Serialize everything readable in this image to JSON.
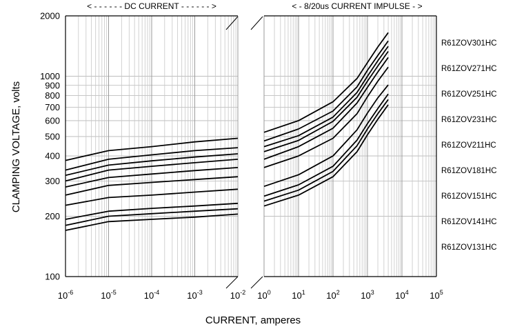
{
  "chart_data": {
    "type": "line",
    "title": "",
    "xlabel": "CURRENT, amperes",
    "ylabel": "CLAMPING VOLTAGE, volts",
    "y_scale": "log",
    "ylim": [
      100,
      2000
    ],
    "y_ticks": [
      100,
      200,
      300,
      400,
      500,
      600,
      700,
      800,
      900,
      1000,
      2000
    ],
    "x_scale": "log",
    "grid": true,
    "panels": [
      {
        "name": "DC",
        "header": "< - - - - - - DC CURRENT - - - - - - >",
        "xlim": [
          1e-06,
          0.01
        ],
        "x_ticks": [
          {
            "base": "10",
            "exp": "-6"
          },
          {
            "base": "10",
            "exp": "-5"
          },
          {
            "base": "10",
            "exp": "-4"
          },
          {
            "base": "10",
            "exp": "-3"
          },
          {
            "base": "10",
            "exp": "-2"
          }
        ]
      },
      {
        "name": "Impulse",
        "header": "< - 8/20us CURRENT IMPULSE - >",
        "xlim": [
          1,
          100000
        ],
        "x_ticks": [
          {
            "base": "10",
            "exp": "0"
          },
          {
            "base": "10",
            "exp": "1"
          },
          {
            "base": "10",
            "exp": "2"
          },
          {
            "base": "10",
            "exp": "3"
          },
          {
            "base": "10",
            "exp": "4"
          },
          {
            "base": "10",
            "exp": "5"
          }
        ]
      }
    ],
    "series": [
      {
        "name": "R61ZOV301HC",
        "dc": [
          [
            1e-06,
            380
          ],
          [
            1e-05,
            425
          ],
          [
            0.0001,
            445
          ],
          [
            0.001,
            470
          ],
          [
            0.01,
            490
          ]
        ],
        "imp": [
          [
            1,
            525
          ],
          [
            10,
            600
          ],
          [
            100,
            745
          ],
          [
            500,
            975
          ],
          [
            1000,
            1170
          ],
          [
            2000,
            1400
          ],
          [
            4000,
            1650
          ]
        ]
      },
      {
        "name": "R61ZOV271HC",
        "dc": [
          [
            1e-06,
            340
          ],
          [
            1e-05,
            385
          ],
          [
            0.0001,
            405
          ],
          [
            0.001,
            425
          ],
          [
            0.01,
            440
          ]
        ],
        "imp": [
          [
            1,
            475
          ],
          [
            10,
            545
          ],
          [
            100,
            670
          ],
          [
            500,
            885
          ],
          [
            1000,
            1070
          ],
          [
            2000,
            1270
          ],
          [
            4000,
            1500
          ]
        ]
      },
      {
        "name": "R61ZOV251HC",
        "dc": [
          [
            1e-06,
            320
          ],
          [
            1e-05,
            360
          ],
          [
            0.0001,
            378
          ],
          [
            0.001,
            395
          ],
          [
            0.01,
            410
          ]
        ],
        "imp": [
          [
            1,
            445
          ],
          [
            10,
            505
          ],
          [
            100,
            625
          ],
          [
            500,
            830
          ],
          [
            1000,
            1000
          ],
          [
            2000,
            1195
          ],
          [
            4000,
            1410
          ]
        ]
      },
      {
        "name": "R61ZOV231HC",
        "dc": [
          [
            1e-06,
            300
          ],
          [
            1e-05,
            340
          ],
          [
            0.0001,
            355
          ],
          [
            0.001,
            370
          ],
          [
            0.01,
            385
          ]
        ],
        "imp": [
          [
            1,
            420
          ],
          [
            10,
            478
          ],
          [
            100,
            595
          ],
          [
            500,
            785
          ],
          [
            1000,
            945
          ],
          [
            2000,
            1125
          ],
          [
            4000,
            1330
          ]
        ]
      },
      {
        "name": "R61ZOV211HC",
        "dc": [
          [
            1e-06,
            280
          ],
          [
            1e-05,
            312
          ],
          [
            0.0001,
            325
          ],
          [
            0.001,
            338
          ],
          [
            0.01,
            350
          ]
        ],
        "imp": [
          [
            1,
            385
          ],
          [
            10,
            445
          ],
          [
            100,
            550
          ],
          [
            500,
            735
          ],
          [
            1000,
            880
          ],
          [
            2000,
            1050
          ],
          [
            4000,
            1240
          ]
        ]
      },
      {
        "name": "R61ZOV181HC",
        "dc": [
          [
            1e-06,
            255
          ],
          [
            1e-05,
            285
          ],
          [
            0.0001,
            295
          ],
          [
            0.001,
            305
          ],
          [
            0.01,
            315
          ]
        ],
        "imp": [
          [
            1,
            350
          ],
          [
            10,
            400
          ],
          [
            100,
            490
          ],
          [
            500,
            650
          ],
          [
            1000,
            790
          ],
          [
            2000,
            945
          ],
          [
            4000,
            1110
          ]
        ]
      },
      {
        "name": "R61ZOV151HC",
        "dc": [
          [
            1e-06,
            227
          ],
          [
            1e-05,
            248
          ],
          [
            0.0001,
            255
          ],
          [
            0.001,
            264
          ],
          [
            0.01,
            273
          ]
        ],
        "imp": [
          [
            1,
            282
          ],
          [
            10,
            322
          ],
          [
            100,
            400
          ],
          [
            500,
            540
          ],
          [
            1000,
            655
          ],
          [
            2000,
            780
          ],
          [
            4000,
            905
          ]
        ]
      },
      {
        "name": "R61ZOV141HC",
        "dc": [
          [
            1e-06,
            193
          ],
          [
            1e-05,
            212
          ],
          [
            0.0001,
            219
          ],
          [
            0.001,
            225
          ],
          [
            0.01,
            232
          ]
        ],
        "imp": [
          [
            1,
            252
          ],
          [
            10,
            287
          ],
          [
            100,
            355
          ],
          [
            500,
            480
          ],
          [
            1000,
            580
          ],
          [
            2000,
            690
          ],
          [
            4000,
            815
          ]
        ]
      },
      {
        "name": "R61ZOV131HC",
        "dc": [
          [
            1e-06,
            180
          ],
          [
            1e-05,
            200
          ],
          [
            0.0001,
            206
          ],
          [
            0.001,
            212
          ],
          [
            0.01,
            218
          ]
        ],
        "imp": [
          [
            1,
            238
          ],
          [
            10,
            270
          ],
          [
            100,
            335
          ],
          [
            500,
            450
          ],
          [
            1000,
            545
          ],
          [
            2000,
            650
          ],
          [
            4000,
            765
          ]
        ]
      },
      {
        "name": "",
        "dc": [
          [
            1e-06,
            170
          ],
          [
            1e-05,
            188
          ],
          [
            0.0001,
            193
          ],
          [
            0.001,
            198
          ],
          [
            0.01,
            205
          ]
        ],
        "imp": [
          [
            1,
            225
          ],
          [
            10,
            255
          ],
          [
            100,
            315
          ],
          [
            500,
            420
          ],
          [
            1000,
            510
          ],
          [
            2000,
            610
          ],
          [
            4000,
            720
          ]
        ]
      }
    ]
  }
}
